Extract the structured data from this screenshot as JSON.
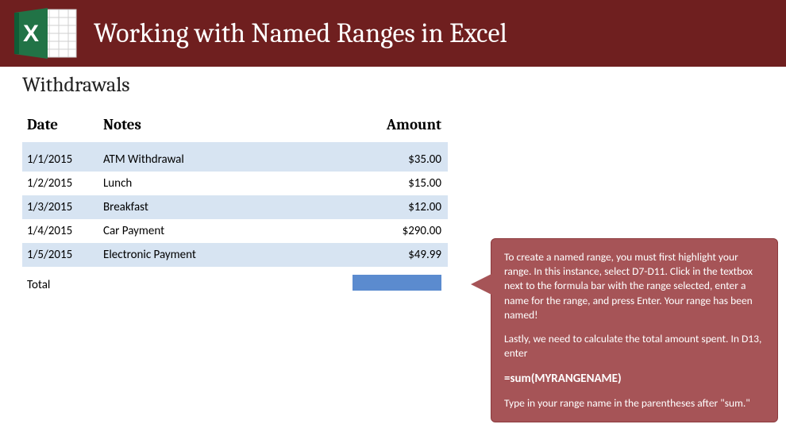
{
  "colors": {
    "header_bg": "#6f1f1f",
    "header_text": "#ffffff",
    "excel_green": "#217346",
    "excel_green_dark": "#0f5d36",
    "band_bg": "#d7e4f2",
    "highlight_cell": "#5b8bcf",
    "callout_bg": "#a65457",
    "callout_border": "#8c3a3d",
    "callout_text": "#ffffff",
    "text": "#222222"
  },
  "header": {
    "title": "Working with Named Ranges in Excel",
    "icon_name": "excel-icon"
  },
  "section": {
    "title": "Withdrawals"
  },
  "table": {
    "columns": {
      "date": "Date",
      "notes": "Notes",
      "amount": "Amount"
    },
    "col_widths": {
      "date": "96px",
      "notes": "300px",
      "amount": "140px"
    },
    "rows": [
      {
        "date": "1/1/2015",
        "notes": "ATM Withdrawal",
        "amount": "$35.00"
      },
      {
        "date": "1/2/2015",
        "notes": "Lunch",
        "amount": "$15.00"
      },
      {
        "date": "1/3/2015",
        "notes": "Breakfast",
        "amount": "$12.00"
      },
      {
        "date": "1/4/2015",
        "notes": "Car Payment",
        "amount": "$290.00"
      },
      {
        "date": "1/5/2015",
        "notes": "Electronic Payment",
        "amount": "$49.99"
      }
    ],
    "total_label": "Total"
  },
  "callout": {
    "para1": "To create a named range, you must first highlight your range. In this instance, select D7-D11. Click in the textbox next to the formula bar with the range selected, enter a name for the range, and press Enter. Your range has been named!",
    "para2": "Lastly, we need to calculate the total amount spent. In D13, enter",
    "formula": "=sum(MYRANGENAME)",
    "para3": "Type in your range name in the parentheses after \"sum.\""
  }
}
